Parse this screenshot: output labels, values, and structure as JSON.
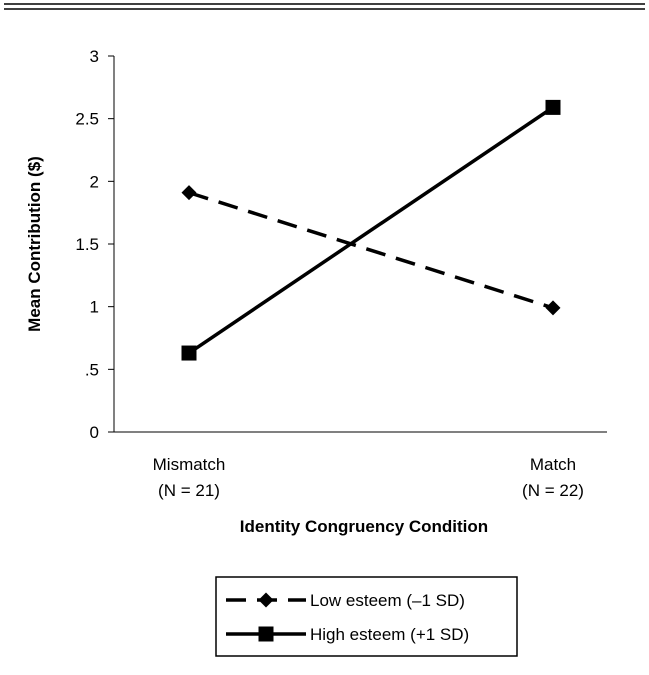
{
  "chart_data": {
    "type": "line",
    "title": "",
    "xlabel": "Identity Congruency Condition",
    "ylabel": "Mean Contribution ($)",
    "categories": [
      {
        "label": "Mismatch",
        "sublabel": "(N = 21)"
      },
      {
        "label": "Match",
        "sublabel": "(N = 22)"
      }
    ],
    "ylim": [
      0,
      3
    ],
    "yticks": [
      {
        "value": 0,
        "label": "0"
      },
      {
        "value": 0.5,
        "label": ".5"
      },
      {
        "value": 1,
        "label": "1"
      },
      {
        "value": 1.5,
        "label": "1.5"
      },
      {
        "value": 2,
        "label": "2"
      },
      {
        "value": 2.5,
        "label": "2.5"
      },
      {
        "value": 3,
        "label": "3"
      }
    ],
    "grid": false,
    "legend_position": "bottom",
    "series": [
      {
        "name": "Low esteem (–1 SD)",
        "values": [
          1.91,
          0.99
        ],
        "marker": "diamond",
        "line_style": "dashed",
        "color": "#000000"
      },
      {
        "name": "High esteem (+1 SD)",
        "values": [
          0.63,
          2.59
        ],
        "marker": "square",
        "line_style": "solid",
        "color": "#000000"
      }
    ]
  }
}
